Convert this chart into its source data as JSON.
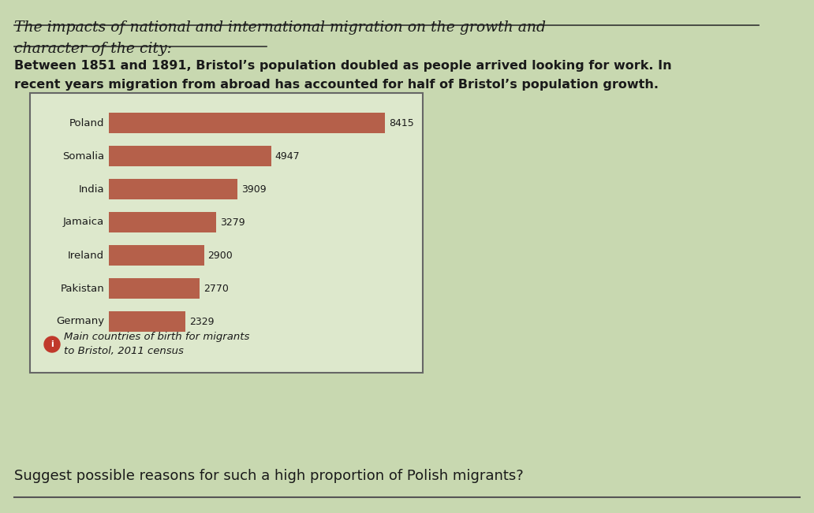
{
  "title_line1": "The impacts of national and international migration on the growth and",
  "title_line2": "character of the city:",
  "body_text1": "Between 1851 and 1891, Bristol’s population doubled as people arrived looking for work. In",
  "body_text2": "recent years migration from abroad has accounted for half of Bristol’s population growth.",
  "footer_text": "Suggest possible reasons for such a high proportion of Polish migrants?",
  "categories": [
    "Poland",
    "Somalia",
    "India",
    "Jamaica",
    "Ireland",
    "Pakistan",
    "Germany"
  ],
  "values": [
    8415,
    4947,
    3909,
    3279,
    2900,
    2770,
    2329
  ],
  "bar_color": "#b5604a",
  "background_color": "#c8d8b0",
  "chart_bg": "#dde8cc",
  "legend_text": "Main countries of birth for migrants\nto Bristol, 2011 census",
  "legend_dot_color": "#c0392b",
  "title_color": "#1a1a1a",
  "text_color": "#1a1a1a"
}
